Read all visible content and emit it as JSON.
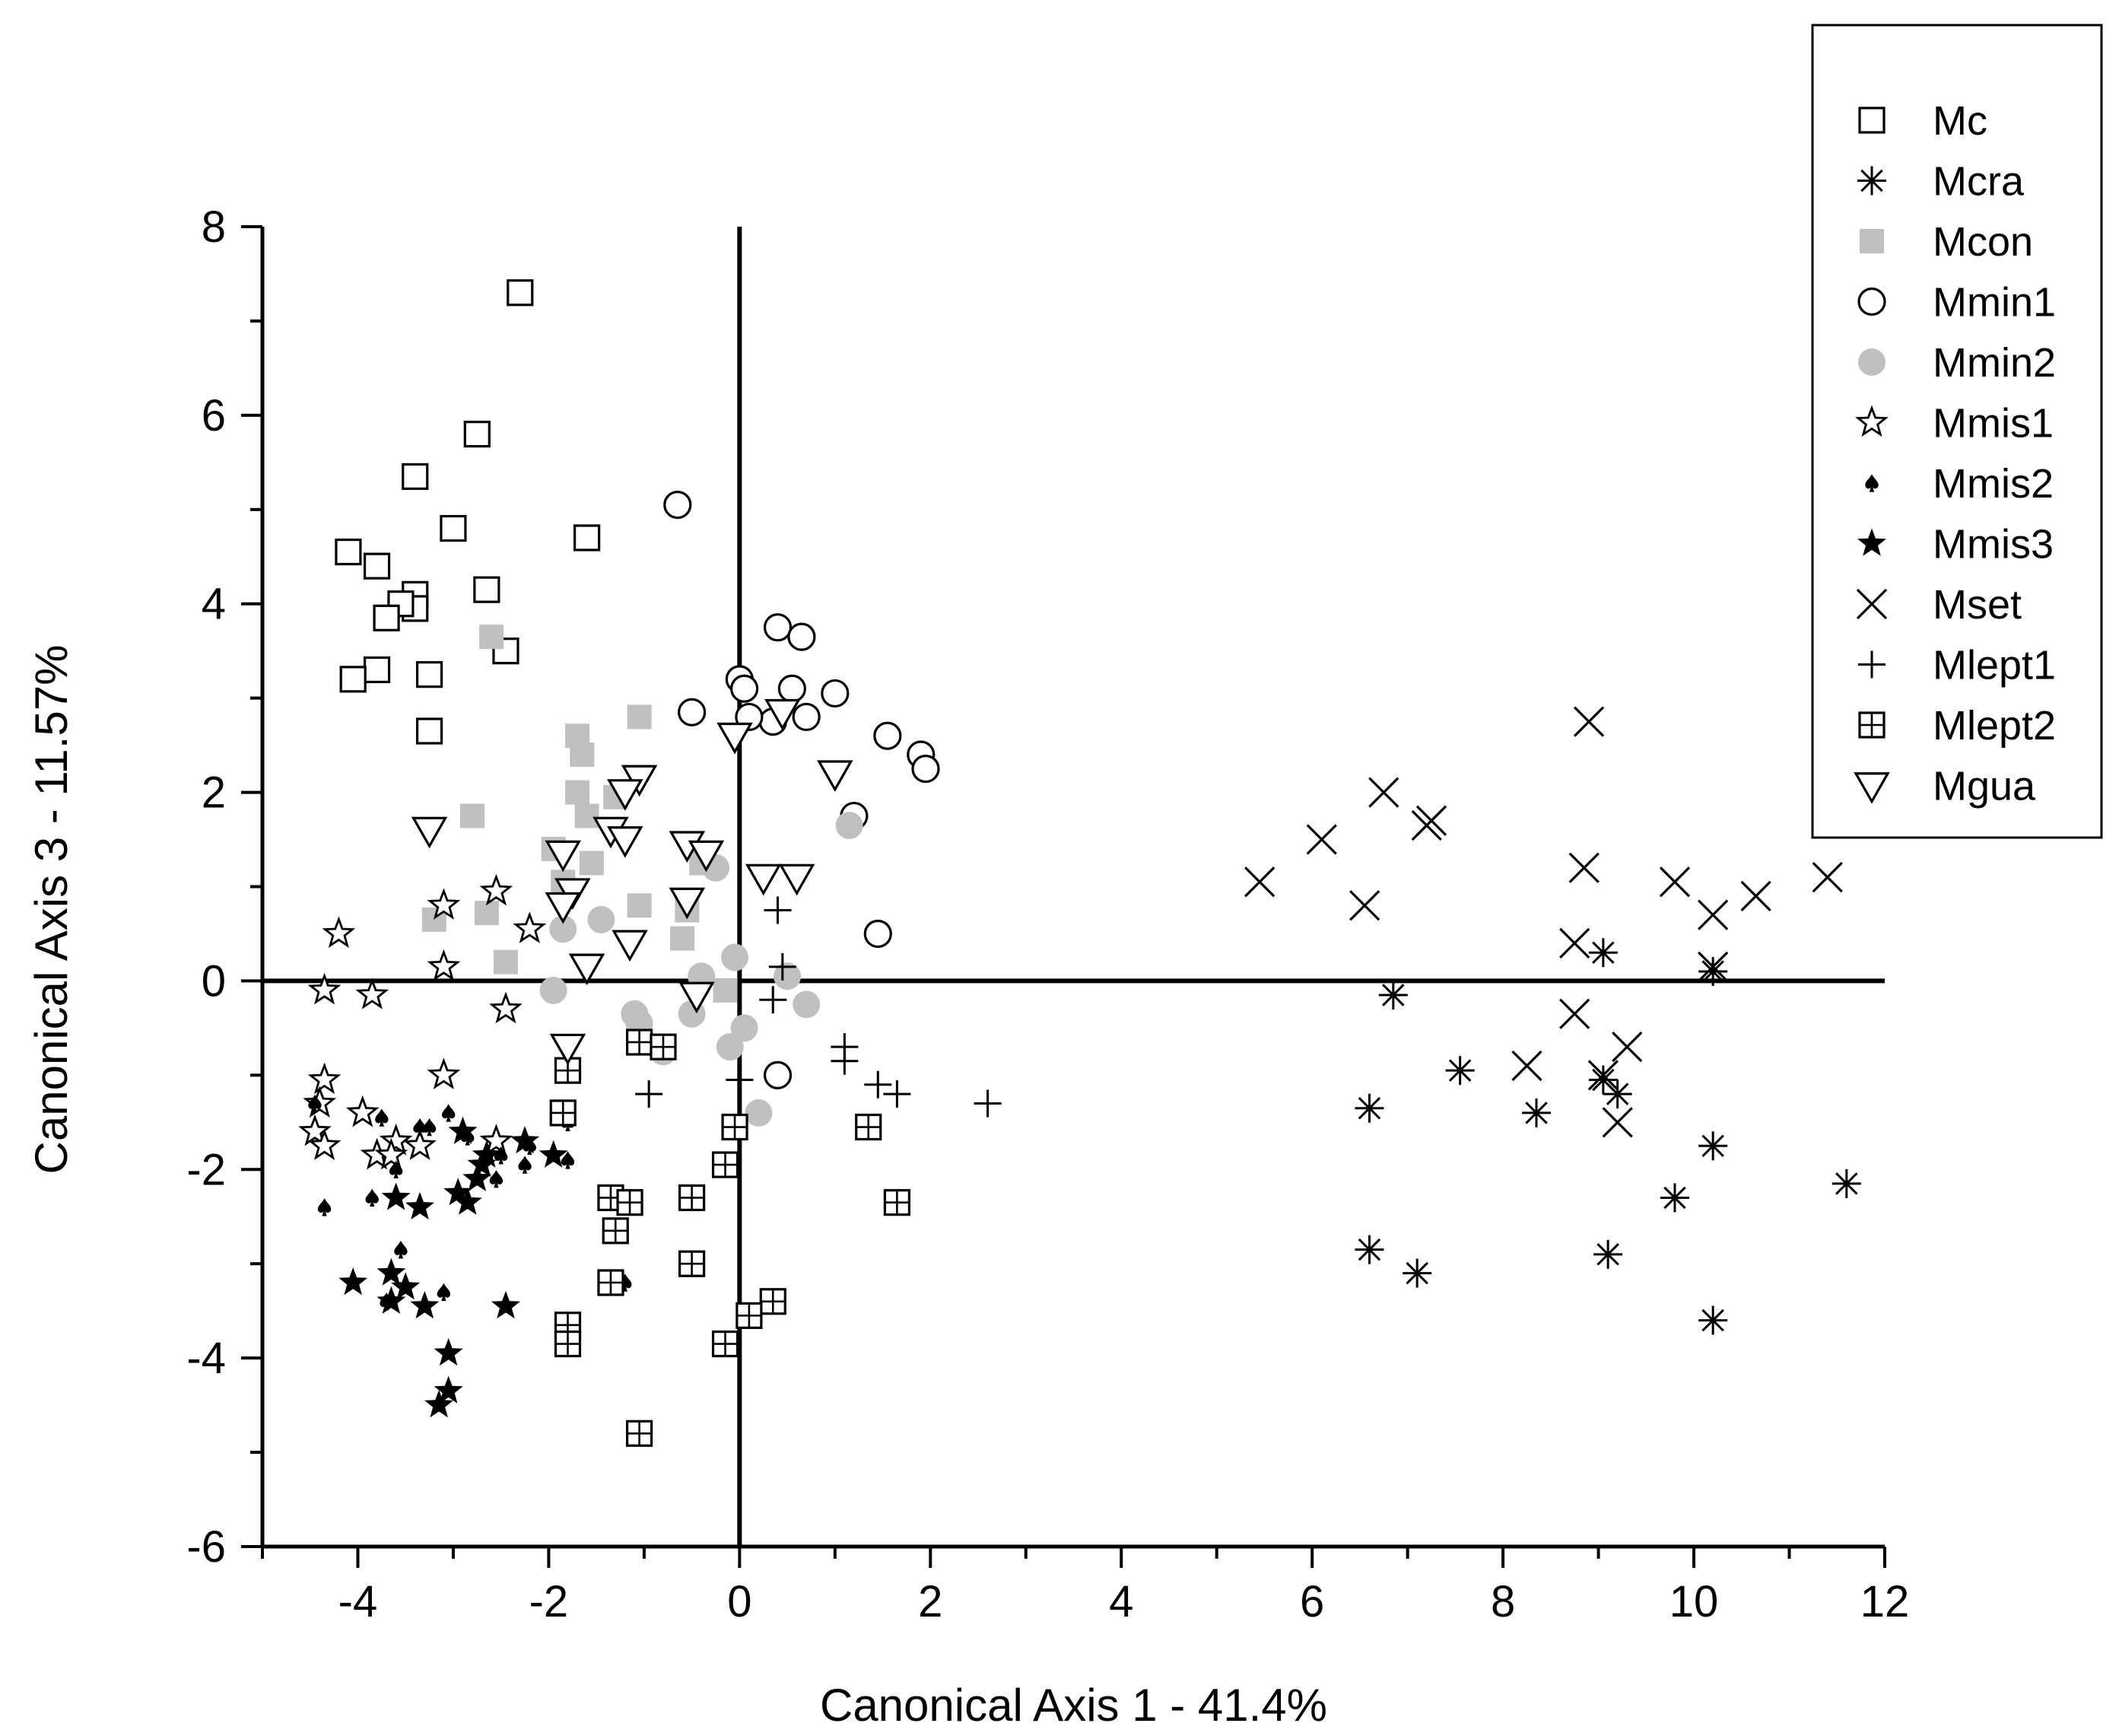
{
  "chart_data": {
    "type": "scatter",
    "title": "",
    "xlabel": "Canonical Axis 1 - 41.4%",
    "ylabel": "Canonical Axis 3 - 11.57%",
    "xlim": [
      -5,
      12
    ],
    "ylim": [
      -6,
      8
    ],
    "xticks": [
      "-4",
      "-2",
      "0",
      "2",
      "4",
      "6",
      "8",
      "10",
      "12"
    ],
    "yticks": [
      "8",
      "6",
      "4",
      "2",
      "0",
      "-2",
      "-4",
      "-6"
    ],
    "legend_position": "top-right",
    "series": [
      {
        "name": "Mc",
        "marker": "square-open",
        "color": "#000000",
        "points": [
          [
            -2.3,
            7.3
          ],
          [
            -2.75,
            5.8
          ],
          [
            -3.4,
            5.35
          ],
          [
            -3.0,
            4.8
          ],
          [
            -1.6,
            4.7
          ],
          [
            -4.1,
            4.55
          ],
          [
            -3.8,
            4.4
          ],
          [
            -2.65,
            4.15
          ],
          [
            -3.4,
            4.1
          ],
          [
            -3.4,
            3.95
          ],
          [
            -3.55,
            4.0
          ],
          [
            -3.7,
            3.85
          ],
          [
            -2.45,
            3.5
          ],
          [
            -3.8,
            3.3
          ],
          [
            -4.05,
            3.2
          ],
          [
            -3.25,
            3.25
          ],
          [
            -3.25,
            2.65
          ]
        ]
      },
      {
        "name": "Mcra",
        "marker": "asterisk",
        "color": "#000000",
        "points": [
          [
            9.05,
            0.3
          ],
          [
            10.2,
            0.1
          ],
          [
            6.85,
            -0.15
          ],
          [
            7.55,
            -0.95
          ],
          [
            9.05,
            -1.05
          ],
          [
            8.35,
            -1.4
          ],
          [
            9.2,
            -1.2
          ],
          [
            6.6,
            -1.35
          ],
          [
            10.2,
            -1.75
          ],
          [
            11.6,
            -2.15
          ],
          [
            9.8,
            -2.3
          ],
          [
            6.6,
            -2.85
          ],
          [
            7.1,
            -3.1
          ],
          [
            9.1,
            -2.9
          ],
          [
            10.2,
            -3.6
          ]
        ]
      },
      {
        "name": "Mcon",
        "marker": "square-filled",
        "color": "#c0c0c0",
        "points": [
          [
            -2.6,
            3.65
          ],
          [
            -1.05,
            2.8
          ],
          [
            -1.7,
            2.6
          ],
          [
            -1.65,
            2.4
          ],
          [
            -1.7,
            2.0
          ],
          [
            -1.6,
            1.75
          ],
          [
            -2.8,
            1.75
          ],
          [
            -1.3,
            1.95
          ],
          [
            -1.95,
            1.4
          ],
          [
            -1.55,
            1.25
          ],
          [
            -1.05,
            0.8
          ],
          [
            -0.55,
            0.75
          ],
          [
            -2.65,
            0.72
          ],
          [
            -3.2,
            0.65
          ],
          [
            -0.6,
            0.45
          ],
          [
            -2.45,
            0.2
          ],
          [
            -0.4,
            1.25
          ],
          [
            -0.15,
            -0.1
          ],
          [
            -1.85,
            1.05
          ]
        ]
      },
      {
        "name": "Mmin1",
        "marker": "circle-open",
        "color": "#000000",
        "points": [
          [
            -0.65,
            5.05
          ],
          [
            0.4,
            3.75
          ],
          [
            0.65,
            3.65
          ],
          [
            0.0,
            3.2
          ],
          [
            0.05,
            3.1
          ],
          [
            0.55,
            3.1
          ],
          [
            1.0,
            3.05
          ],
          [
            -0.5,
            2.85
          ],
          [
            0.35,
            2.75
          ],
          [
            0.7,
            2.8
          ],
          [
            0.1,
            2.8
          ],
          [
            1.55,
            2.6
          ],
          [
            1.9,
            2.4
          ],
          [
            1.95,
            2.25
          ],
          [
            1.2,
            1.75
          ],
          [
            1.45,
            0.5
          ],
          [
            0.4,
            -1.0
          ]
        ]
      },
      {
        "name": "Mmin2",
        "marker": "circle-filled",
        "color": "#c0c0c0",
        "points": [
          [
            1.15,
            1.65
          ],
          [
            -0.25,
            1.2
          ],
          [
            -1.45,
            0.65
          ],
          [
            -1.85,
            0.55
          ],
          [
            -0.05,
            0.25
          ],
          [
            -0.4,
            0.05
          ],
          [
            0.5,
            0.05
          ],
          [
            -1.95,
            -0.1
          ],
          [
            0.7,
            -0.25
          ],
          [
            -1.1,
            -0.35
          ],
          [
            -1.05,
            -0.45
          ],
          [
            -0.5,
            -0.35
          ],
          [
            0.05,
            -0.5
          ],
          [
            -0.1,
            -0.7
          ],
          [
            -0.8,
            -0.75
          ],
          [
            0.2,
            -1.4
          ]
        ]
      },
      {
        "name": "Mmis1",
        "marker": "star-open",
        "color": "#000000",
        "points": [
          [
            -4.2,
            0.5
          ],
          [
            -2.55,
            0.95
          ],
          [
            -3.1,
            0.8
          ],
          [
            -2.2,
            0.55
          ],
          [
            -3.1,
            0.15
          ],
          [
            -4.35,
            -0.1
          ],
          [
            -3.85,
            -0.15
          ],
          [
            -2.45,
            -0.3
          ],
          [
            -3.1,
            -1.0
          ],
          [
            -4.35,
            -1.05
          ],
          [
            -4.4,
            -1.3
          ],
          [
            -3.95,
            -1.4
          ],
          [
            -4.45,
            -1.6
          ],
          [
            -3.6,
            -1.7
          ],
          [
            -3.35,
            -1.75
          ],
          [
            -4.35,
            -1.75
          ],
          [
            -3.8,
            -1.85
          ],
          [
            -3.65,
            -1.85
          ],
          [
            -2.55,
            -1.7
          ]
        ]
      },
      {
        "name": "Mmis2",
        "marker": "spade",
        "color": "#000000",
        "points": [
          [
            -3.05,
            -1.4
          ],
          [
            -3.25,
            -1.55
          ],
          [
            -2.85,
            -1.65
          ],
          [
            -2.5,
            -1.85
          ],
          [
            -2.25,
            -1.95
          ],
          [
            -3.75,
            -1.45
          ],
          [
            -3.35,
            -1.55
          ],
          [
            -1.8,
            -1.5
          ],
          [
            -1.8,
            -1.9
          ],
          [
            -4.35,
            -2.4
          ],
          [
            -3.85,
            -2.3
          ],
          [
            -3.6,
            -2.0
          ],
          [
            -2.55,
            -2.1
          ],
          [
            -3.55,
            -2.85
          ],
          [
            -3.1,
            -3.3
          ],
          [
            -1.2,
            -3.2
          ],
          [
            -3.7,
            -3.4
          ],
          [
            -4.45,
            -1.3
          ],
          [
            -2.2,
            -1.75
          ]
        ]
      },
      {
        "name": "Mmis3",
        "marker": "star-filled",
        "color": "#000000",
        "points": [
          [
            -2.9,
            -1.6
          ],
          [
            -2.25,
            -1.7
          ],
          [
            -1.95,
            -1.85
          ],
          [
            -2.65,
            -1.85
          ],
          [
            -2.75,
            -2.1
          ],
          [
            -2.7,
            -1.95
          ],
          [
            -2.95,
            -2.25
          ],
          [
            -2.85,
            -2.35
          ],
          [
            -3.6,
            -2.3
          ],
          [
            -3.35,
            -2.4
          ],
          [
            -4.05,
            -3.2
          ],
          [
            -3.65,
            -3.1
          ],
          [
            -3.5,
            -3.25
          ],
          [
            -3.65,
            -3.4
          ],
          [
            -3.3,
            -3.45
          ],
          [
            -2.45,
            -3.45
          ],
          [
            -3.05,
            -3.95
          ],
          [
            -3.05,
            -4.35
          ],
          [
            -3.15,
            -4.5
          ]
        ]
      },
      {
        "name": "Mset",
        "marker": "x",
        "color": "#000000",
        "points": [
          [
            8.9,
            2.75
          ],
          [
            6.75,
            2.0
          ],
          [
            6.1,
            1.5
          ],
          [
            7.2,
            1.65
          ],
          [
            7.25,
            1.7
          ],
          [
            5.45,
            1.05
          ],
          [
            8.85,
            1.2
          ],
          [
            9.8,
            1.05
          ],
          [
            10.2,
            0.7
          ],
          [
            10.65,
            0.9
          ],
          [
            11.4,
            1.1
          ],
          [
            6.55,
            0.8
          ],
          [
            8.75,
            0.4
          ],
          [
            10.2,
            0.15
          ],
          [
            8.75,
            -0.35
          ],
          [
            9.3,
            -0.7
          ],
          [
            8.25,
            -0.9
          ],
          [
            9.05,
            -1.0
          ],
          [
            9.2,
            -1.5
          ]
        ]
      },
      {
        "name": "Mlept1",
        "marker": "plus",
        "color": "#000000",
        "points": [
          [
            0.4,
            0.75
          ],
          [
            0.45,
            0.15
          ],
          [
            0.35,
            -0.2
          ],
          [
            1.1,
            -0.7
          ],
          [
            1.1,
            -0.85
          ],
          [
            0.0,
            -1.05
          ],
          [
            1.45,
            -1.1
          ],
          [
            1.65,
            -1.2
          ],
          [
            -0.95,
            -1.2
          ],
          [
            2.6,
            -1.3
          ]
        ]
      },
      {
        "name": "Mlept2",
        "marker": "square-grid",
        "color": "#000000",
        "points": [
          [
            -1.05,
            -0.65
          ],
          [
            -0.8,
            -0.7
          ],
          [
            -1.8,
            -0.95
          ],
          [
            -1.85,
            -1.4
          ],
          [
            -0.05,
            -1.55
          ],
          [
            1.35,
            -1.55
          ],
          [
            -0.15,
            -1.95
          ],
          [
            -1.35,
            -2.3
          ],
          [
            -1.15,
            -2.35
          ],
          [
            -0.5,
            -2.3
          ],
          [
            1.65,
            -2.35
          ],
          [
            -1.3,
            -2.65
          ],
          [
            -0.5,
            -3.0
          ],
          [
            -1.35,
            -3.2
          ],
          [
            0.35,
            -3.4
          ],
          [
            0.1,
            -3.55
          ],
          [
            -1.8,
            -3.65
          ],
          [
            -1.8,
            -3.85
          ],
          [
            -0.15,
            -3.85
          ],
          [
            -1.05,
            -4.8
          ]
        ]
      },
      {
        "name": "Mgua",
        "marker": "triangle-down-open",
        "color": "#000000",
        "points": [
          [
            -0.05,
            2.6
          ],
          [
            0.45,
            2.85
          ],
          [
            1.0,
            2.2
          ],
          [
            -1.05,
            2.15
          ],
          [
            -1.2,
            2.0
          ],
          [
            -1.35,
            1.6
          ],
          [
            -1.2,
            1.5
          ],
          [
            -3.25,
            1.6
          ],
          [
            -0.55,
            1.45
          ],
          [
            -0.35,
            1.35
          ],
          [
            0.25,
            1.1
          ],
          [
            0.6,
            1.1
          ],
          [
            -1.85,
            1.35
          ],
          [
            -1.75,
            0.95
          ],
          [
            -1.85,
            0.8
          ],
          [
            -0.55,
            0.85
          ],
          [
            -1.15,
            0.4
          ],
          [
            -1.6,
            0.15
          ],
          [
            -0.45,
            -0.15
          ],
          [
            -1.8,
            -0.7
          ]
        ]
      }
    ]
  }
}
